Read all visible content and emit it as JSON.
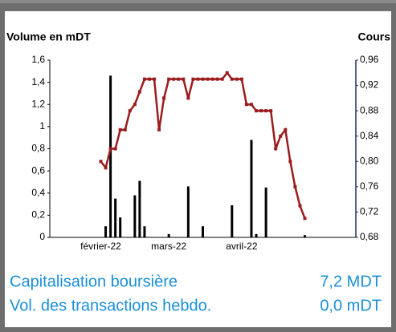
{
  "chart_data": {
    "type": "bar-line",
    "ylabel": "Volume en mDT",
    "y2label": "Cours",
    "categories": [
      null,
      null,
      null,
      null,
      null,
      null,
      null,
      null,
      null,
      null,
      null,
      null,
      null,
      null,
      null,
      null,
      null,
      null,
      null,
      null,
      null,
      null,
      null,
      null,
      "mars-22",
      null,
      null,
      null,
      null,
      null,
      null,
      null,
      null,
      null,
      null,
      null,
      null,
      null,
      null,
      "avril-22",
      null,
      null,
      null,
      null,
      null,
      null,
      null,
      null,
      null,
      null,
      null,
      null,
      null,
      null,
      null,
      null,
      null,
      null,
      null,
      null,
      null,
      null,
      null
    ],
    "series": [
      {
        "type": "bar",
        "color": "#000000",
        "values": [
          null,
          null,
          null,
          null,
          null,
          null,
          null,
          null,
          null,
          null,
          null,
          0.1,
          1.46,
          0.35,
          0.18,
          null,
          null,
          0.38,
          0.51,
          0.1,
          null,
          null,
          null,
          null,
          0.03,
          null,
          null,
          null,
          0.46,
          null,
          null,
          0.1,
          null,
          null,
          null,
          null,
          null,
          0.29,
          null,
          null,
          null,
          0.88,
          0.03,
          null,
          0.45,
          null,
          null,
          null,
          null,
          null,
          null,
          null,
          0.02,
          null,
          null,
          null,
          null,
          null,
          null,
          null,
          null,
          null,
          null
        ]
      },
      {
        "type": "line",
        "axis": "y2",
        "color": "#9b1c1c",
        "values": [
          null,
          null,
          null,
          null,
          null,
          null,
          null,
          null,
          null,
          null,
          0.8,
          0.79,
          0.82,
          0.82,
          0.85,
          0.85,
          0.88,
          0.89,
          0.91,
          0.93,
          0.93,
          0.93,
          0.85,
          0.9,
          0.93,
          0.93,
          0.93,
          0.93,
          0.9,
          0.93,
          0.93,
          0.93,
          0.93,
          0.93,
          0.93,
          0.93,
          0.94,
          0.93,
          0.93,
          0.93,
          0.89,
          0.89,
          0.88,
          0.88,
          0.88,
          0.88,
          0.82,
          0.84,
          0.85,
          0.8,
          0.76,
          0.73,
          0.71,
          null,
          null,
          null,
          null,
          null,
          null,
          null,
          null,
          null,
          null
        ]
      }
    ],
    "xlabels_extra": [
      {
        "index": 10,
        "label": "février-22"
      }
    ],
    "ylim": [
      0,
      1.6
    ],
    "yticks": [
      0,
      {
        "value": 0.2,
        "label": "0,2"
      },
      {
        "value": 0.4,
        "label": "0,4"
      },
      {
        "value": 0.6,
        "label": "0,6"
      },
      {
        "value": 0.8,
        "label": "0,8"
      },
      1,
      {
        "value": 1.2,
        "label": "1,2"
      },
      {
        "value": 1.4,
        "label": "1,4"
      },
      {
        "value": 1.6,
        "label": "1,6"
      }
    ],
    "y2lim": [
      0.68,
      0.96
    ],
    "y2ticks": [
      {
        "value": 0.68,
        "label": "0,68"
      },
      {
        "value": 0.72,
        "label": "0,72"
      },
      {
        "value": 0.76,
        "label": "0,76"
      },
      {
        "value": 0.8,
        "label": "0,80"
      },
      {
        "value": 0.84,
        "label": "0,84"
      },
      {
        "value": 0.88,
        "label": "0,88"
      },
      {
        "value": 0.92,
        "label": "0,92"
      },
      {
        "value": 0.96,
        "label": "0,96"
      }
    ]
  },
  "summary": [
    {
      "label": "Capitalisation boursière",
      "value": "7,2 MDT"
    },
    {
      "label": "Vol. des transactions hebdo.",
      "value": "0,0 mDT"
    }
  ]
}
